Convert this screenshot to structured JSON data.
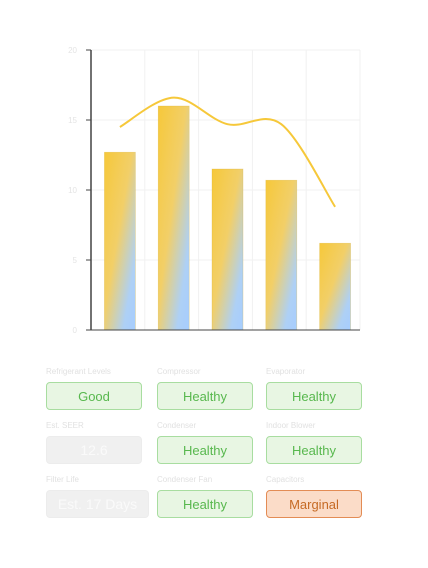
{
  "chart_data": {
    "type": "bar",
    "categories": [
      "",
      "",
      "",
      "",
      ""
    ],
    "values": [
      12.7,
      16.0,
      11.5,
      10.7,
      6.2
    ],
    "series": [
      {
        "values": [
          12.7,
          16.0,
          11.5,
          10.7,
          6.2
        ]
      },
      {
        "type": "line",
        "values": [
          14.5,
          16.6,
          14.7,
          14.7,
          8.8
        ]
      }
    ],
    "yticks": [
      "0",
      "5",
      "10",
      "15",
      "20"
    ],
    "ylim": [
      0,
      20
    ],
    "grid": true,
    "colors": {
      "bar_top": "#f6c83a",
      "bar_bottom": "#a9d0ff",
      "line": "#f6c83a",
      "axis": "#444444",
      "grid": "#f1f1f1"
    }
  },
  "status": {
    "refrigerant": {
      "label": "Refrigerant Levels",
      "value": "Good"
    },
    "compressor": {
      "label": "Compressor",
      "value": "Healthy"
    },
    "evaporator": {
      "label": "Evaporator",
      "value": "Healthy"
    },
    "seer": {
      "label": "Est. SEER",
      "value": "12.6"
    },
    "condenser": {
      "label": "Condenser",
      "value": "Healthy"
    },
    "blower": {
      "label": "Indoor Blower",
      "value": "Healthy"
    },
    "filter": {
      "label": "Filter Life",
      "value": "Est. 17 Days"
    },
    "condenser_fan": {
      "label": "Condenser Fan",
      "value": "Healthy"
    },
    "capacitors": {
      "label": "Capacitors",
      "value": "Marginal"
    }
  }
}
